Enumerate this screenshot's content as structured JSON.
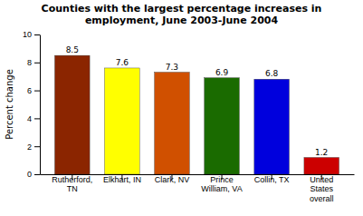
{
  "chart_data": {
    "type": "bar",
    "title": "Counties with the largest percentage increases in\nemployment, June 2003-June 2004",
    "categories": [
      "Rutherford,\nTN",
      "Elkhart, IN",
      "Clark, NV",
      "Prince\nWilliam, VA",
      "Collin, TX",
      "United\nStates\noverall"
    ],
    "values": [
      8.5,
      7.6,
      7.3,
      6.9,
      6.8,
      1.2
    ],
    "colors": [
      "#8B2500",
      "#FFFF00",
      "#D05000",
      "#1A6B00",
      "#0000DD",
      "#CC0000"
    ],
    "ylabel": "Percent change",
    "ylim": [
      0,
      10
    ],
    "yticks": [
      0,
      2,
      4,
      6,
      8,
      10
    ],
    "grid": false,
    "data_labels": true
  }
}
